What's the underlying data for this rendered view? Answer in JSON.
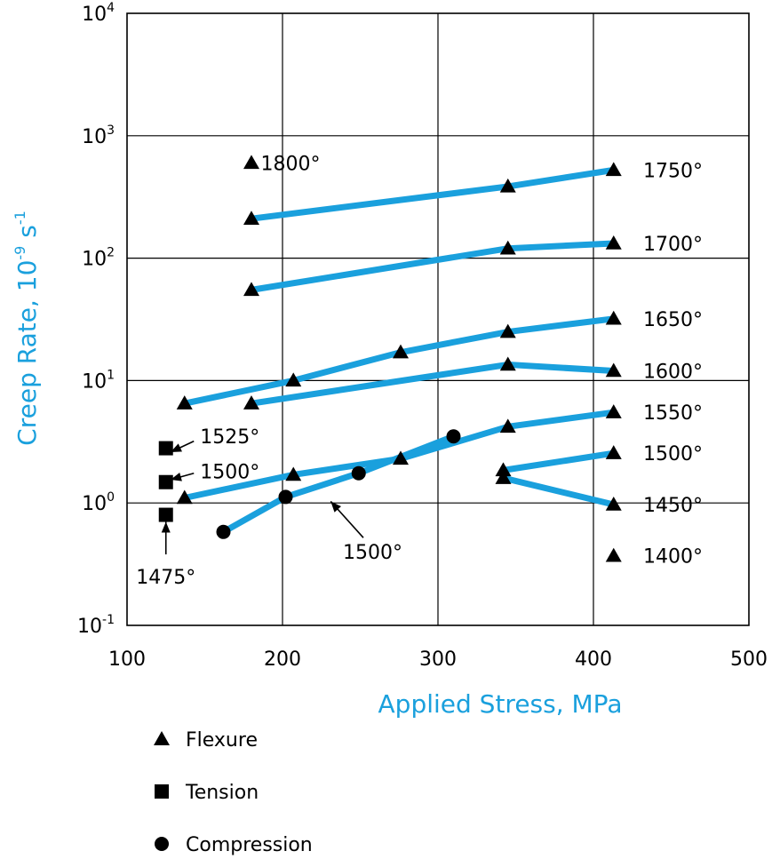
{
  "chart_data": {
    "type": "line",
    "xlabel": "Applied Stress, MPa",
    "ylabel": "Creep Rate, 10",
    "ylabel_exp": "-9",
    "ylabel_unit": " s",
    "ylabel_unit_exp": "-1",
    "xlim": [
      100,
      500
    ],
    "ylim": [
      0.1,
      10000
    ],
    "y_scale": "log",
    "grid": true,
    "x_ticks": [
      {
        "value": 100,
        "label": "100"
      },
      {
        "value": 200,
        "label": "200"
      },
      {
        "value": 300,
        "label": "300"
      },
      {
        "value": 400,
        "label": "400"
      },
      {
        "value": 500,
        "label": "500"
      }
    ],
    "y_ticks": [
      {
        "value": 0.1,
        "base": "10",
        "exp": "-1"
      },
      {
        "value": 1,
        "base": "10",
        "exp": "0"
      },
      {
        "value": 10,
        "base": "10",
        "exp": "1"
      },
      {
        "value": 100,
        "base": "10",
        "exp": "2"
      },
      {
        "value": 1000,
        "base": "10",
        "exp": "3"
      },
      {
        "value": 10000,
        "base": "10",
        "exp": "4"
      }
    ],
    "line_color": "#1aa0dd",
    "marker_color": "#000000",
    "series": [
      {
        "label": "1750°",
        "mode": "Flexure",
        "points": [
          [
            180,
            210
          ],
          [
            345,
            385
          ],
          [
            413,
            525
          ]
        ]
      },
      {
        "label": "1700°",
        "mode": "Flexure",
        "points": [
          [
            180,
            55
          ],
          [
            345,
            120
          ],
          [
            413,
            132
          ]
        ]
      },
      {
        "label": "1650°",
        "mode": "Flexure",
        "points": [
          [
            137,
            6.5
          ],
          [
            207,
            10
          ],
          [
            276,
            17
          ],
          [
            345,
            25
          ],
          [
            413,
            32
          ]
        ]
      },
      {
        "label": "1600°",
        "mode": "Flexure",
        "points": [
          [
            180,
            6.5
          ],
          [
            345,
            13.5
          ],
          [
            413,
            12
          ]
        ]
      },
      {
        "label": "1550°",
        "mode": "Flexure",
        "points": [
          [
            137,
            1.1
          ],
          [
            207,
            1.7
          ],
          [
            276,
            2.3
          ],
          [
            345,
            4.2
          ],
          [
            413,
            5.5
          ]
        ]
      },
      {
        "label": "1500°",
        "mode": "Flexure",
        "points": [
          [
            342,
            1.85
          ],
          [
            413,
            2.55
          ]
        ]
      },
      {
        "label": "1450°",
        "mode": "Flexure",
        "points": [
          [
            342,
            1.6
          ],
          [
            413,
            0.97
          ]
        ]
      },
      {
        "label": "",
        "mode": "Compression",
        "points": [
          [
            162,
            0.58
          ],
          [
            202,
            1.12
          ],
          [
            249,
            1.75
          ],
          [
            310,
            3.5
          ]
        ]
      }
    ],
    "isolated_points": [
      {
        "mode": "Flexure",
        "x": 180,
        "y": 600
      },
      {
        "mode": "Flexure",
        "x": 413,
        "y": 0.37
      },
      {
        "mode": "Tension",
        "x": 125,
        "y": 2.8
      },
      {
        "mode": "Tension",
        "x": 125,
        "y": 1.48
      },
      {
        "mode": "Tension",
        "x": 125,
        "y": 0.8
      }
    ],
    "annotations": [
      {
        "text": "1800°",
        "x": 186,
        "y": 600,
        "anchor": "start"
      },
      {
        "text": "1750°",
        "x": 432,
        "y": 525,
        "anchor": "start"
      },
      {
        "text": "1700°",
        "x": 432,
        "y": 132,
        "anchor": "start"
      },
      {
        "text": "1650°",
        "x": 432,
        "y": 32,
        "anchor": "start"
      },
      {
        "text": "1600°",
        "x": 432,
        "y": 12,
        "anchor": "start"
      },
      {
        "text": "1550°",
        "x": 432,
        "y": 5.5,
        "anchor": "start"
      },
      {
        "text": "1500°",
        "x": 432,
        "y": 2.55,
        "anchor": "start"
      },
      {
        "text": "1450°",
        "x": 432,
        "y": 0.97,
        "anchor": "start"
      },
      {
        "text": "1400°",
        "x": 432,
        "y": 0.37,
        "anchor": "start"
      },
      {
        "text": "1525°",
        "x": 147,
        "y": 3.5,
        "anchor": "start"
      },
      {
        "text": "1500°",
        "x": 147,
        "y": 1.82,
        "anchor": "start"
      },
      {
        "text": "1475°",
        "x": 125,
        "y": 0.25,
        "anchor": "middle"
      },
      {
        "text": "1500°",
        "x": 258,
        "y": 0.4,
        "anchor": "middle"
      }
    ],
    "arrows": [
      {
        "from": [
          143,
          3.2
        ],
        "to": [
          128,
          2.6
        ]
      },
      {
        "from": [
          143,
          1.75
        ],
        "to": [
          128,
          1.55
        ]
      },
      {
        "from": [
          125,
          0.38
        ],
        "to": [
          125,
          0.7
        ]
      },
      {
        "from": [
          252,
          0.52
        ],
        "to": [
          231,
          1.03
        ]
      }
    ],
    "legend": {
      "position": "bottom-left",
      "items": [
        {
          "marker": "triangle",
          "label": "Flexure"
        },
        {
          "marker": "square",
          "label": "Tension"
        },
        {
          "marker": "circle",
          "label": "Compression"
        }
      ]
    }
  }
}
